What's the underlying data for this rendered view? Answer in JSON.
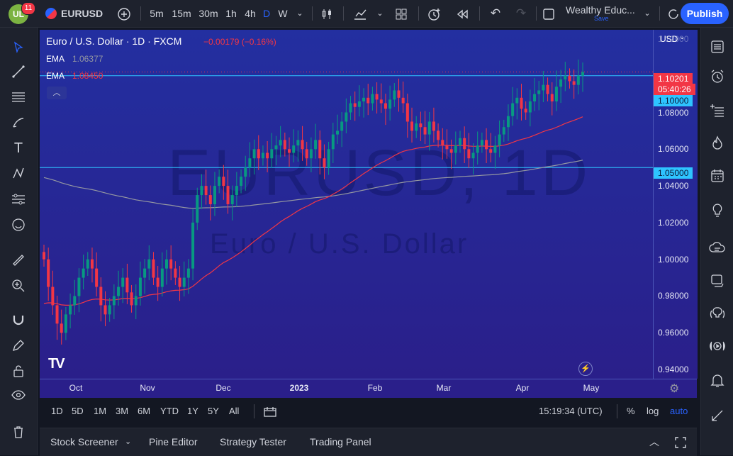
{
  "topbar": {
    "notifications": "11",
    "symbol": "EURUSD",
    "intervals": [
      "5m",
      "15m",
      "30m",
      "1h",
      "4h",
      "D",
      "W"
    ],
    "active_interval": "D",
    "layout_name": "Wealthy Educ...",
    "layout_save": "Save",
    "publish_label": "Publish"
  },
  "legend": {
    "title": "Euro / U.S. Dollar · 1D · FXCM",
    "change": "−0.00179 (−0.16%)",
    "ema1_label": "EMA",
    "ema1_value": "1.06377",
    "ema2_label": "EMA",
    "ema2_value": "1.08450"
  },
  "watermark": {
    "symbol": "EURUSD, 1D",
    "name": "Euro / U.S. Dollar"
  },
  "price_axis": {
    "currency": "USD",
    "ticks": [
      "1.12000",
      "1.08000",
      "1.06000",
      "1.04000",
      "1.02000",
      "1.00000",
      "0.98000",
      "0.96000",
      "0.94000"
    ],
    "last_price": "1.10201",
    "countdown": "05:40:26",
    "hline1": "1.10000",
    "hline2": "1.05000"
  },
  "time_axis": {
    "ticks": [
      "Oct",
      "Nov",
      "Dec",
      "2023",
      "Feb",
      "Mar",
      "Apr",
      "May"
    ]
  },
  "range_bar": {
    "ranges": [
      "1D",
      "5D",
      "1M",
      "3M",
      "6M",
      "YTD",
      "1Y",
      "5Y",
      "All"
    ],
    "clock": "15:19:34 (UTC)",
    "percent": "%",
    "log": "log",
    "auto": "auto"
  },
  "bottom_tabs": {
    "tabs": [
      "Stock Screener",
      "Pine Editor",
      "Strategy Tester",
      "Trading Panel"
    ]
  },
  "colors": {
    "up": "#089981",
    "down": "#f23645",
    "ema_fast": "#f23645",
    "ema_slow": "#9598a1",
    "hline": "#2ec4ff",
    "accent": "#2962ff"
  },
  "chart_data": {
    "type": "candlestick",
    "title": "Euro / U.S. Dollar · 1D · FXCM",
    "ylim": [
      0.935,
      1.125
    ],
    "x_ticks": [
      "Oct",
      "Nov",
      "Dec",
      "2023",
      "Feb",
      "Mar",
      "Apr",
      "May"
    ],
    "horizontal_lines": [
      1.1,
      1.05
    ],
    "approx_daily_closes": [
      1.0,
      0.985,
      0.975,
      0.965,
      0.96,
      0.97,
      0.975,
      0.98,
      0.99,
      0.995,
      1.0,
      0.995,
      0.985,
      0.975,
      0.97,
      0.975,
      0.98,
      0.985,
      0.99,
      0.982,
      0.975,
      0.98,
      0.99,
      0.995,
      1.0,
      0.99,
      0.985,
      0.995,
      1.0,
      0.995,
      0.99,
      0.985,
      0.99,
      0.995,
      1.02,
      1.035,
      1.04,
      1.035,
      1.03,
      1.04,
      1.045,
      1.04,
      1.03,
      1.035,
      1.04,
      1.045,
      1.05,
      1.055,
      1.06,
      1.055,
      1.058,
      1.055,
      1.06,
      1.062,
      1.065,
      1.06,
      1.058,
      1.062,
      1.065,
      1.06,
      1.055,
      1.06,
      1.065,
      1.055,
      1.05,
      1.06,
      1.068,
      1.07,
      1.075,
      1.08,
      1.085,
      1.083,
      1.086,
      1.088,
      1.085,
      1.09,
      1.087,
      1.085,
      1.082,
      1.087,
      1.092,
      1.088,
      1.085,
      1.075,
      1.07,
      1.074,
      1.072,
      1.068,
      1.075,
      1.07,
      1.065,
      1.062,
      1.06,
      1.058,
      1.062,
      1.066,
      1.06,
      1.055,
      1.058,
      1.062,
      1.065,
      1.06,
      1.058,
      1.062,
      1.068,
      1.072,
      1.078,
      1.085,
      1.088,
      1.082,
      1.08,
      1.086,
      1.09,
      1.092,
      1.095,
      1.09,
      1.086,
      1.094,
      1.098,
      1.1,
      1.097,
      1.095,
      1.1,
      1.102
    ]
  }
}
